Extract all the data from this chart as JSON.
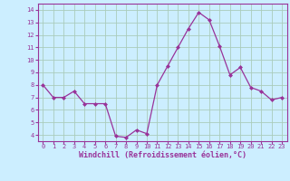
{
  "x": [
    0,
    1,
    2,
    3,
    4,
    5,
    6,
    7,
    8,
    9,
    10,
    11,
    12,
    13,
    14,
    15,
    16,
    17,
    18,
    19,
    20,
    21,
    22,
    23
  ],
  "y": [
    8.0,
    7.0,
    7.0,
    7.5,
    6.5,
    6.5,
    6.5,
    3.9,
    3.8,
    4.4,
    4.1,
    8.0,
    9.5,
    11.0,
    12.5,
    13.8,
    13.2,
    11.1,
    8.8,
    9.4,
    7.8,
    7.5,
    6.8,
    7.0
  ],
  "line_color": "#993399",
  "marker": "D",
  "marker_size": 2,
  "xlabel": "Windchill (Refroidissement éolien,°C)",
  "xlim_min": -0.5,
  "xlim_max": 23.5,
  "ylim_min": 3.5,
  "ylim_max": 14.5,
  "yticks": [
    4,
    5,
    6,
    7,
    8,
    9,
    10,
    11,
    12,
    13,
    14
  ],
  "xticks": [
    0,
    1,
    2,
    3,
    4,
    5,
    6,
    7,
    8,
    9,
    10,
    11,
    12,
    13,
    14,
    15,
    16,
    17,
    18,
    19,
    20,
    21,
    22,
    23
  ],
  "bg_color": "#cceeff",
  "grid_color": "#aaccbb",
  "border_color": "#993399",
  "label_color": "#993399",
  "tick_color": "#993399",
  "xlabel_fontsize": 6.0,
  "tick_fontsize": 5.0
}
